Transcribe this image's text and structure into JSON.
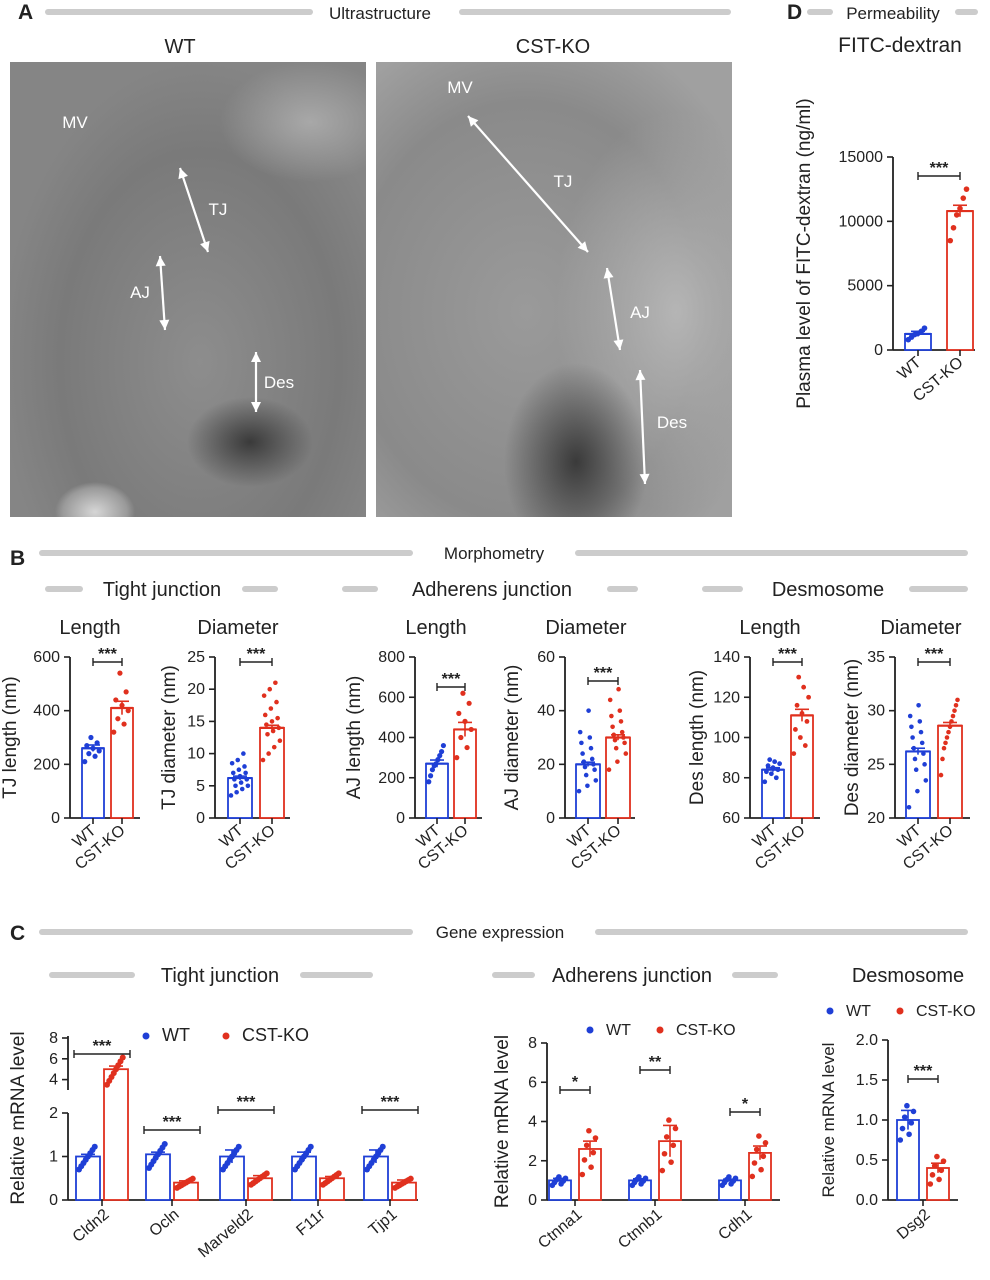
{
  "figure": {
    "panel_labels": {
      "A": "A",
      "B": "B",
      "C": "C",
      "D": "D"
    },
    "section_titles": {
      "ultrastructure": "Ultrastructure",
      "permeability": "Permeability",
      "morphometry": "Morphometry",
      "gene_expression": "Gene expression"
    },
    "micrograph_titles": {
      "wt": "WT",
      "ko": "CST-KO"
    },
    "micrograph_labels": {
      "mv": "MV",
      "tj": "TJ",
      "aj": "AJ",
      "des": "Des"
    },
    "group_titles": {
      "tight": "Tight junction",
      "adherens": "Adherens junction",
      "desmosome": "Desmosome"
    },
    "colors": {
      "wt": "#1f3fd6",
      "ko": "#e0301e",
      "axis": "#222222",
      "rule": "#cccccc"
    }
  },
  "chart_data": [
    {
      "id": "fitc",
      "type": "bar",
      "title": "FITC-dextran",
      "ylabel": "Plasma level of FITC-dextran (ng/ml)",
      "categories": [
        "WT",
        "CST-KO"
      ],
      "values": [
        1250,
        10800
      ],
      "errors": [
        200,
        450
      ],
      "ylim": [
        0,
        15000
      ],
      "yticks": [
        "0",
        "5000",
        "10000",
        "15000"
      ],
      "sig": "***",
      "points": [
        [
          800,
          1000,
          1200,
          1300,
          1450,
          1700
        ],
        [
          8500,
          9500,
          10500,
          11000,
          11800,
          12500
        ]
      ]
    },
    {
      "id": "tj_len",
      "type": "bar",
      "title": "Length",
      "ylabel": "TJ length (nm)",
      "categories": [
        "WT",
        "CST-KO"
      ],
      "values": [
        260,
        410
      ],
      "errors": [
        12,
        25
      ],
      "ylim": [
        0,
        600
      ],
      "yticks": [
        "0",
        "200",
        "400",
        "600"
      ],
      "sig": "***",
      "points": [
        [
          210,
          230,
          240,
          250,
          260,
          270,
          280,
          300
        ],
        [
          320,
          350,
          370,
          400,
          420,
          440,
          470,
          540
        ]
      ]
    },
    {
      "id": "tj_dia",
      "type": "bar",
      "title": "Diameter",
      "ylabel": "TJ diameter (nm)",
      "categories": [
        "WT",
        "CST-KO"
      ],
      "values": [
        6.2,
        14
      ],
      "errors": [
        0.3,
        0.4
      ],
      "ylim": [
        0,
        25
      ],
      "yticks": [
        "0",
        "5",
        "10",
        "15",
        "20",
        "25"
      ],
      "sig": "***",
      "points": [
        [
          3.5,
          4,
          4.5,
          5,
          5,
          5.5,
          6,
          6,
          6.5,
          7,
          7,
          7.5,
          8,
          8.5,
          9,
          10
        ],
        [
          9,
          10,
          11,
          12,
          13,
          13.5,
          14,
          14.5,
          15,
          15.5,
          16,
          17,
          18,
          19,
          20,
          21
        ]
      ]
    },
    {
      "id": "aj_len",
      "type": "bar",
      "title": "Length",
      "ylabel": "AJ length (nm)",
      "categories": [
        "WT",
        "CST-KO"
      ],
      "values": [
        270,
        440
      ],
      "errors": [
        18,
        35
      ],
      "ylim": [
        0,
        800
      ],
      "yticks": [
        "0",
        "200",
        "400",
        "600",
        "800"
      ],
      "sig": "***",
      "points": [
        [
          180,
          210,
          240,
          260,
          270,
          290,
          310,
          330,
          360
        ],
        [
          300,
          350,
          400,
          440,
          480,
          520,
          570,
          620
        ]
      ]
    },
    {
      "id": "aj_dia",
      "type": "bar",
      "title": "Diameter",
      "ylabel": "AJ diameter (nm)",
      "categories": [
        "WT",
        "CST-KO"
      ],
      "values": [
        20,
        30
      ],
      "errors": [
        0.8,
        1
      ],
      "ylim": [
        0,
        60
      ],
      "yticks": [
        "0",
        "20",
        "40",
        "60"
      ],
      "sig": "***",
      "points": [
        [
          10,
          12,
          14,
          16,
          18,
          19,
          20,
          21,
          22,
          24,
          26,
          28,
          30,
          32,
          40
        ],
        [
          18,
          21,
          24,
          26,
          28,
          29,
          30,
          31,
          32,
          34,
          36,
          38,
          40,
          44,
          48
        ]
      ]
    },
    {
      "id": "des_len",
      "type": "bar",
      "title": "Length",
      "ylabel": "Des length (nm)",
      "categories": [
        "WT",
        "CST-KO"
      ],
      "values": [
        84,
        111
      ],
      "errors": [
        1,
        3
      ],
      "ylim": [
        60,
        140
      ],
      "yticks": [
        "60",
        "80",
        "100",
        "120",
        "140"
      ],
      "sig": "***",
      "points": [
        [
          78,
          80,
          82,
          83,
          84,
          85,
          86,
          87,
          88,
          89
        ],
        [
          92,
          96,
          100,
          104,
          108,
          112,
          116,
          120,
          125,
          130
        ]
      ]
    },
    {
      "id": "des_dia",
      "type": "bar",
      "title": "Diameter",
      "ylabel": "Des diameter (nm)",
      "categories": [
        "WT",
        "CST-KO"
      ],
      "values": [
        26.2,
        28.6
      ],
      "errors": [
        0.3,
        0.3
      ],
      "ylim": [
        20,
        35
      ],
      "yticks": [
        "20",
        "25",
        "30",
        "35"
      ],
      "sig": "***",
      "points": [
        [
          21,
          22.5,
          23.5,
          24.5,
          25,
          25.5,
          26,
          26.5,
          27,
          27.5,
          28,
          28.5,
          29,
          29.5,
          30.5
        ],
        [
          24,
          25.5,
          26.5,
          27,
          27.5,
          28,
          28.5,
          29,
          29.5,
          30,
          30.5,
          31
        ]
      ]
    },
    {
      "id": "ge_tj",
      "type": "bar",
      "title": "Tight junction",
      "ylabel": "Relative mRNA level",
      "categories": [
        "Cldn2",
        "Ocln",
        "Marveld2",
        "F11r",
        "Tjp1"
      ],
      "series": [
        {
          "name": "WT",
          "values": [
            1,
            1.05,
            1,
            1,
            1
          ],
          "errors": [
            0.05,
            0.05,
            0.15,
            0.1,
            0.15
          ]
        },
        {
          "name": "CST-KO",
          "values": [
            5,
            0.4,
            0.5,
            0.5,
            0.4
          ],
          "errors": [
            0.3,
            0.04,
            0.06,
            0.04,
            0.06
          ]
        }
      ],
      "yticks_low": [
        "0",
        "1",
        "2"
      ],
      "yticks_high": [
        "4",
        "6",
        "8"
      ],
      "sig": [
        "***",
        "***",
        "***",
        "",
        "***"
      ],
      "legend": [
        "WT",
        "CST-KO"
      ]
    },
    {
      "id": "ge_aj",
      "type": "bar",
      "title": "Adherens junction",
      "ylabel": "Relative mRNA level",
      "categories": [
        "Ctnna1",
        "Ctnnb1",
        "Cdh1"
      ],
      "series": [
        {
          "name": "WT",
          "values": [
            1,
            1,
            1
          ],
          "errors": [
            0.1,
            0.08,
            0.06
          ]
        },
        {
          "name": "CST-KO",
          "values": [
            2.6,
            3,
            2.4
          ],
          "errors": [
            0.4,
            0.8,
            0.35
          ]
        }
      ],
      "ylim": [
        0,
        8
      ],
      "yticks": [
        "0",
        "2",
        "4",
        "6",
        "8"
      ],
      "sig": [
        "*",
        "**",
        "*"
      ],
      "legend": [
        "WT",
        "CST-KO"
      ]
    },
    {
      "id": "ge_des",
      "type": "bar",
      "title": "Desmosome",
      "ylabel": "Relative mRNA level",
      "categories": [
        "Dsg2"
      ],
      "series": [
        {
          "name": "WT",
          "values": [
            1
          ],
          "errors": [
            0.12
          ]
        },
        {
          "name": "CST-KO",
          "values": [
            0.4
          ],
          "errors": [
            0.06
          ]
        }
      ],
      "ylim": [
        0,
        2
      ],
      "yticks": [
        "0.0",
        "0.5",
        "1.0",
        "1.5",
        "2.0"
      ],
      "sig": [
        "***"
      ],
      "legend": [
        "WT",
        "CST-KO"
      ]
    }
  ]
}
